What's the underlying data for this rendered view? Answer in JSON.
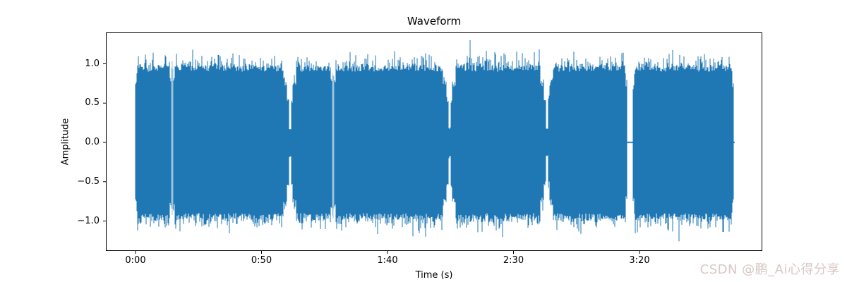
{
  "figure": {
    "title": "Waveform",
    "watermark": "CSDN @鹏_Ai心得分享",
    "watermark_color": "#d8c8c4",
    "background_color": "#ffffff"
  },
  "chart_data": {
    "type": "line",
    "subtype": "audio-waveform",
    "title": "Waveform",
    "xlabel": "Time (s)",
    "ylabel": "Amplitude",
    "line_color": "#1f77b4",
    "axis_color": "#000000",
    "grid": false,
    "legend": null,
    "ylim": [
      -1.39,
      1.4
    ],
    "xlim_seconds": [
      -11.8,
      248.8
    ],
    "duration_seconds": 237.2,
    "x_ticks": [
      {
        "label": "0:00",
        "seconds": 0
      },
      {
        "label": "0:50",
        "seconds": 50
      },
      {
        "label": "1:40",
        "seconds": 100
      },
      {
        "label": "2:30",
        "seconds": 150
      },
      {
        "label": "3:20",
        "seconds": 200
      }
    ],
    "y_ticks": [
      {
        "label": "1.0",
        "value": 1.0
      },
      {
        "label": "0.5",
        "value": 0.5
      },
      {
        "label": "0.0",
        "value": 0.0
      },
      {
        "label": "−0.5",
        "value": -0.5
      },
      {
        "label": "−1.0",
        "value": -1.0
      }
    ],
    "series": [
      {
        "name": "amplitude",
        "envelope_base": 0.95,
        "envelope_peak_typical": 1.05,
        "envelope_peak_max": 1.3,
        "segments_seconds": [
          [
            0,
            195.0
          ],
          [
            197.5,
            237.2
          ]
        ],
        "silence_gap_seconds": [
          195.0,
          197.5
        ],
        "quiet_notches": [
          {
            "seconds": 14.6,
            "style": "slit"
          },
          {
            "seconds": 61.3,
            "style": "dip"
          },
          {
            "seconds": 78.4,
            "style": "slit"
          },
          {
            "seconds": 124.6,
            "style": "dip"
          },
          {
            "seconds": 163.3,
            "style": "dip"
          }
        ],
        "zero_line_marks_seconds": [
          [
            194.8,
            198.3
          ],
          [
            236.3,
            237.8
          ]
        ]
      }
    ]
  }
}
